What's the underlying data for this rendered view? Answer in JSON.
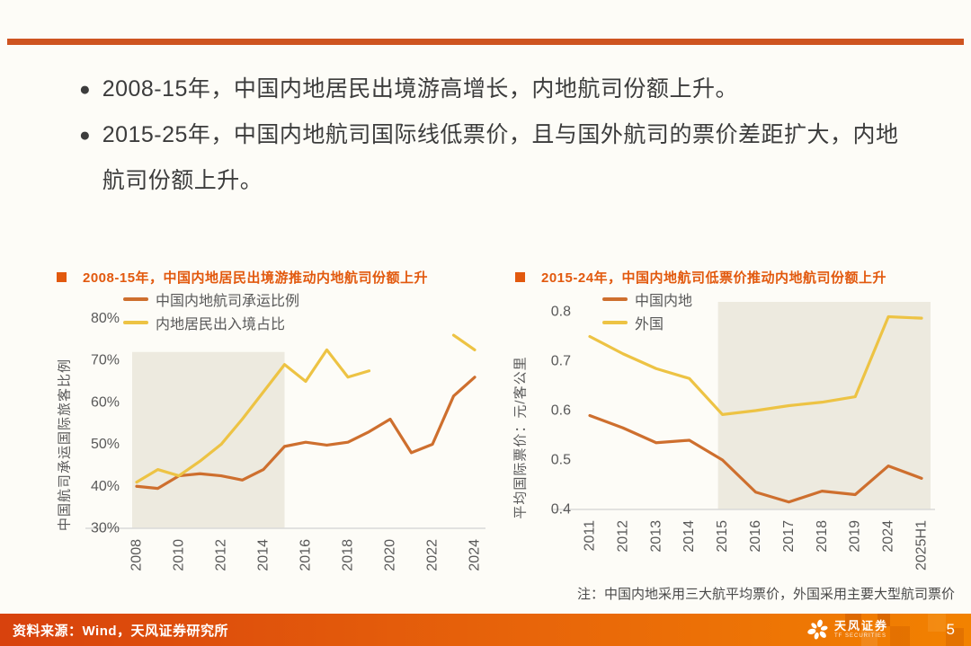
{
  "colors": {
    "accent_orange": "#E2590E",
    "rule_orange": "#CE5420",
    "footer_gradient_start": "#D8420D",
    "footer_gradient_end": "#F28200",
    "shade_beige": "#EDEADF"
  },
  "bullets": [
    {
      "marker": "●",
      "text": "2008-15年，中国内地居民出境游高增长，内地航司份额上升。"
    },
    {
      "marker": "●",
      "text": "2015-25年，中国内地航司国际线低票价，且与国外航司的票价差距扩大，内地航司份额上升。"
    }
  ],
  "footer": {
    "source": "资料来源：Wind，天风证券研究所",
    "brand": "天风证券",
    "brand_sub": "TF SECURITIES",
    "page_number": "5"
  },
  "chart_data": [
    {
      "type": "line",
      "title": "2008-15年，中国内地居民出境游推动内地航司份额上升",
      "ylabel": "中国航司承运国际旅客比例",
      "categories": [
        "2008",
        "2009",
        "2010",
        "2011",
        "2012",
        "2013",
        "2014",
        "2015",
        "2016",
        "2017",
        "2018",
        "2019",
        "2020",
        "2021",
        "2022",
        "2023",
        "2024"
      ],
      "x_tick_labels": [
        "2008",
        "2010",
        "2012",
        "2014",
        "2016",
        "2018",
        "2020",
        "2022",
        "2024"
      ],
      "ymin": 30,
      "ymax": 82,
      "yticks": [
        "30%",
        "40%",
        "50%",
        "60%",
        "70%",
        "80%"
      ],
      "grid": false,
      "legend_position": "top-left",
      "series": [
        {
          "name": "中国内地航司承运比例",
          "color": "#CE6F2E",
          "values": [
            40,
            39.5,
            42.5,
            43,
            42.5,
            41.5,
            44,
            49.5,
            50.5,
            49.8,
            50.5,
            53,
            56,
            48,
            50,
            61.5,
            66
          ]
        },
        {
          "name": "内地居民出入境占比",
          "color": "#EDC344",
          "values": [
            41,
            44,
            42.5,
            46,
            50,
            56,
            62.5,
            69,
            65,
            72.5,
            66,
            67.5,
            null,
            null,
            null,
            76,
            72.5
          ]
        }
      ],
      "shade": {
        "from": "2008",
        "to": "2015",
        "top": 72,
        "color": "#EDEADF"
      }
    },
    {
      "type": "line",
      "title": "2015-24年，中国内地航司低票价推动内地航司份额上升",
      "ylabel": "平均国际票价：元/客公里",
      "note": "注：中国内地采用三大航平均票价，外国采用主要大型航司票价",
      "categories": [
        "2011",
        "2012",
        "2013",
        "2014",
        "2015",
        "2016",
        "2017",
        "2018",
        "2019",
        "2024",
        "2025H1"
      ],
      "x_tick_labels": [
        "2011",
        "2012",
        "2013",
        "2014",
        "2015",
        "2016",
        "2017",
        "2018",
        "2019",
        "2024",
        "2025H1"
      ],
      "ymin": 0.4,
      "ymax": 0.82,
      "yticks": [
        "0.4",
        "0.5",
        "0.6",
        "0.7",
        "0.8"
      ],
      "grid": false,
      "legend_position": "top-left",
      "series": [
        {
          "name": "中国内地",
          "color": "#CE6F2E",
          "values": [
            0.59,
            0.565,
            0.535,
            0.54,
            0.5,
            0.435,
            0.415,
            0.437,
            0.43,
            0.488,
            0.463
          ]
        },
        {
          "name": "外国",
          "color": "#EDC344",
          "values": [
            0.75,
            0.715,
            0.685,
            0.665,
            0.592,
            0.6,
            0.61,
            0.617,
            0.628,
            0.79,
            0.787
          ]
        }
      ],
      "shade": {
        "from": "2015",
        "to": "end",
        "top": 0.82,
        "color": "#EDEADF"
      }
    }
  ]
}
